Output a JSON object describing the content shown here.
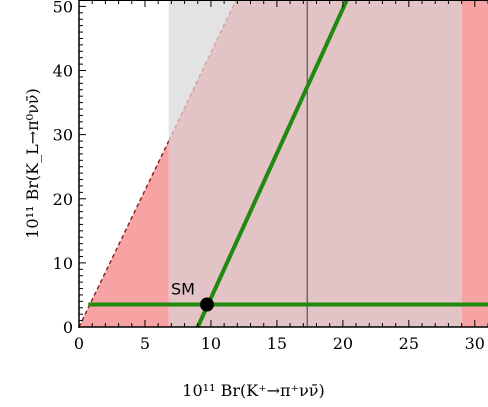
{
  "chart_data": {
    "type": "line",
    "xlabel": "10¹¹ Br(K⁺→π⁺νν̄)",
    "ylabel": "10¹¹ Br(K_L→π⁰νν̄)",
    "xlim": [
      0,
      31
    ],
    "ylim": [
      0,
      51
    ],
    "x_ticks": [
      0,
      5,
      10,
      15,
      20,
      25,
      30
    ],
    "y_ticks": [
      0,
      10,
      20,
      30,
      40,
      50
    ],
    "grid": false,
    "colors": {
      "green": "#1f8a0f",
      "red_region": "#f7a3a3",
      "pink_region": "#e2c4c6",
      "gray_region": "#e3e3e3",
      "dashed_dark": "#8a1a1a",
      "dashed_light": "#d7a0a0",
      "vertical_line": "#555555"
    },
    "regions": [
      {
        "name": "gray-band",
        "polygon": [
          [
            6.8,
            51
          ],
          [
            6.8,
            29
          ],
          [
            11.9,
            51
          ]
        ]
      },
      {
        "name": "pink-band",
        "polygon": [
          [
            6.8,
            0
          ],
          [
            6.8,
            29
          ],
          [
            11.9,
            51
          ],
          [
            29.0,
            51
          ],
          [
            29.0,
            0
          ]
        ]
      },
      {
        "name": "red-left-triangle",
        "polygon": [
          [
            0,
            0
          ],
          [
            6.8,
            0
          ],
          [
            6.8,
            29
          ]
        ]
      },
      {
        "name": "red-right-band",
        "polygon": [
          [
            29.0,
            0
          ],
          [
            29.0,
            51
          ],
          [
            31,
            51
          ],
          [
            31,
            0
          ]
        ]
      }
    ],
    "dashed_lines": [
      {
        "name": "bound-lower",
        "points": [
          [
            0,
            0
          ],
          [
            6.8,
            29
          ]
        ],
        "color": "dashed_dark"
      },
      {
        "name": "bound-upper",
        "points": [
          [
            6.8,
            29
          ],
          [
            11.9,
            51
          ]
        ],
        "color": "dashed_light"
      }
    ],
    "vertical_line_x": 17.3,
    "series": [
      {
        "points": [
          [
            0.7,
            3.5
          ],
          [
            31,
            3.5
          ]
        ]
      },
      {
        "points": [
          [
            9.0,
            0
          ],
          [
            20.3,
            51
          ]
        ]
      }
    ],
    "sm_point": {
      "x": 9.7,
      "y": 3.5,
      "label": "SM"
    }
  }
}
